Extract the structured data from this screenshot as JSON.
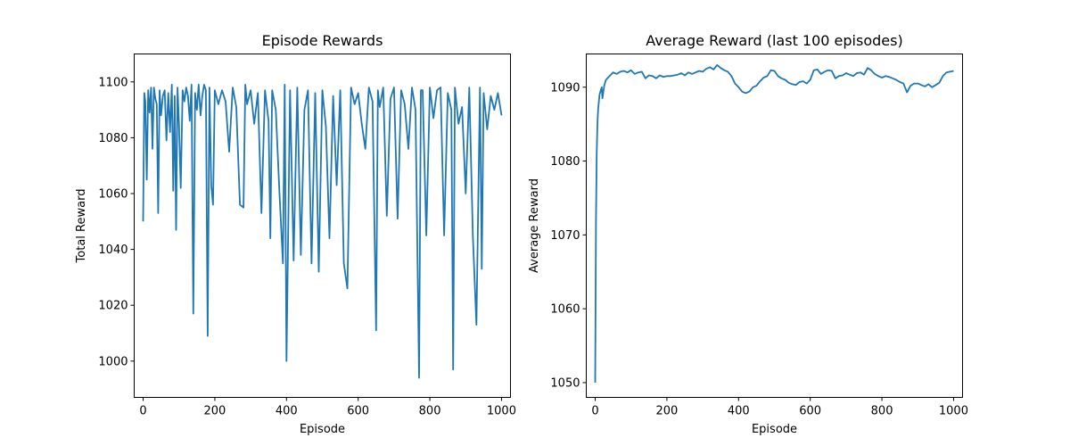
{
  "chart_data": [
    {
      "type": "line",
      "title": "Episode Rewards",
      "xlabel": "Episode",
      "ylabel": "Total Reward",
      "xlim": [
        -25,
        1025
      ],
      "ylim": [
        987,
        1110
      ],
      "xticks": [
        0,
        200,
        400,
        600,
        800,
        1000
      ],
      "yticks": [
        1000,
        1020,
        1040,
        1060,
        1080,
        1100
      ],
      "grid": false,
      "color": "#1f77b4",
      "series": [
        {
          "x": [
            0,
            3,
            6,
            10,
            14,
            18,
            22,
            26,
            30,
            34,
            38,
            42,
            46,
            50,
            55,
            60,
            65,
            70,
            75,
            80,
            84,
            88,
            92,
            96,
            100,
            105,
            110,
            115,
            120,
            125,
            130,
            135,
            140,
            145,
            150,
            155,
            160,
            165,
            170,
            175,
            180,
            185,
            190,
            195,
            200,
            210,
            220,
            230,
            240,
            250,
            260,
            270,
            280,
            285,
            290,
            300,
            310,
            320,
            330,
            340,
            350,
            355,
            360,
            370,
            380,
            390,
            395,
            400,
            410,
            420,
            430,
            440,
            450,
            460,
            470,
            480,
            490,
            500,
            510,
            520,
            530,
            540,
            550,
            560,
            570,
            580,
            590,
            600,
            610,
            620,
            630,
            640,
            650,
            655,
            660,
            670,
            680,
            690,
            700,
            710,
            720,
            730,
            740,
            750,
            760,
            770,
            775,
            780,
            790,
            800,
            810,
            820,
            830,
            840,
            850,
            860,
            865,
            870,
            880,
            890,
            900,
            910,
            920,
            930,
            940,
            945,
            950,
            960,
            970,
            980,
            990,
            1000
          ],
          "values": [
            1050,
            1096,
            1093,
            1065,
            1097,
            1089,
            1098,
            1076,
            1098,
            1094,
            1092,
            1053,
            1097,
            1088,
            1095,
            1097,
            1079,
            1096,
            1082,
            1099,
            1061,
            1095,
            1047,
            1098,
            1085,
            1062,
            1097,
            1093,
            1098,
            1095,
            1086,
            1099,
            1017,
            1096,
            1090,
            1099,
            1088,
            1095,
            1099,
            1097,
            1009,
            1098,
            1063,
            1056,
            1097,
            1092,
            1097,
            1093,
            1075,
            1098,
            1091,
            1056,
            1055,
            1099,
            1092,
            1097,
            1085,
            1096,
            1053,
            1097,
            1086,
            1044,
            1097,
            1090,
            1061,
            1035,
            1099,
            1000,
            1097,
            1036,
            1098,
            1038,
            1090,
            1097,
            1035,
            1096,
            1032,
            1097,
            1084,
            1044,
            1095,
            1063,
            1097,
            1035,
            1026,
            1098,
            1092,
            1096,
            1085,
            1076,
            1098,
            1093,
            1011,
            1097,
            1091,
            1098,
            1052,
            1094,
            1098,
            1051,
            1097,
            1092,
            1076,
            1098,
            1090,
            994,
            1097,
            1097,
            1045,
            1098,
            1087,
            1097,
            1098,
            1045,
            1096,
            1090,
            997,
            1098,
            1085,
            1091,
            1060,
            1098,
            1045,
            1013,
            1098,
            1033,
            1096,
            1083,
            1095,
            1090,
            1096,
            1088
          ]
        }
      ]
    },
    {
      "type": "line",
      "title": "Average Reward (last 100 episodes)",
      "xlabel": "Episode",
      "ylabel": "Average Reward",
      "xlim": [
        -25,
        1025
      ],
      "ylim": [
        1048,
        1094.5
      ],
      "xticks": [
        0,
        200,
        400,
        600,
        800,
        1000
      ],
      "yticks": [
        1050,
        1060,
        1070,
        1080,
        1090
      ],
      "grid": false,
      "color": "#1f77b4",
      "series": [
        {
          "x": [
            0,
            2,
            4,
            6,
            8,
            10,
            12,
            15,
            18,
            20,
            25,
            30,
            40,
            50,
            60,
            70,
            80,
            90,
            100,
            110,
            120,
            130,
            140,
            150,
            160,
            170,
            180,
            190,
            200,
            210,
            220,
            230,
            240,
            250,
            260,
            270,
            280,
            290,
            300,
            310,
            320,
            330,
            340,
            350,
            360,
            370,
            380,
            390,
            400,
            410,
            420,
            430,
            440,
            450,
            460,
            470,
            480,
            490,
            500,
            510,
            520,
            530,
            540,
            550,
            560,
            570,
            580,
            590,
            600,
            610,
            620,
            630,
            640,
            650,
            660,
            670,
            680,
            690,
            700,
            710,
            720,
            730,
            740,
            750,
            760,
            770,
            780,
            790,
            800,
            810,
            820,
            830,
            840,
            850,
            860,
            870,
            880,
            890,
            900,
            910,
            920,
            930,
            940,
            950,
            960,
            970,
            980,
            990,
            1000
          ],
          "values": [
            1050,
            1072,
            1081,
            1085,
            1087,
            1088,
            1089,
            1089.5,
            1090,
            1088.5,
            1090.2,
            1091,
            1091.5,
            1092,
            1091.8,
            1092.1,
            1092.2,
            1092,
            1092.3,
            1091.8,
            1092,
            1092.1,
            1091.2,
            1091.6,
            1091.5,
            1091.2,
            1091.6,
            1091.4,
            1091.5,
            1091.5,
            1091.6,
            1091.7,
            1091.9,
            1091.6,
            1092,
            1091.8,
            1092,
            1092.2,
            1092.1,
            1092.5,
            1092.7,
            1092.4,
            1093,
            1092.6,
            1092.3,
            1092.1,
            1091.5,
            1090.5,
            1090,
            1089.4,
            1089.2,
            1089.4,
            1090,
            1090.2,
            1090.8,
            1091.3,
            1091.5,
            1092.3,
            1092.2,
            1091.5,
            1091.2,
            1091,
            1090.6,
            1090.4,
            1090.3,
            1090.7,
            1090.8,
            1090.5,
            1091,
            1092.3,
            1092.4,
            1091.8,
            1092.1,
            1092.3,
            1092.2,
            1091.2,
            1091.5,
            1091.6,
            1091.9,
            1091.7,
            1091.5,
            1091.9,
            1092,
            1091.7,
            1092.6,
            1092.3,
            1091.8,
            1091.5,
            1091.3,
            1091.5,
            1091.4,
            1091.2,
            1091,
            1090.7,
            1090.5,
            1089.3,
            1090.2,
            1090.5,
            1090.5,
            1090.3,
            1090.1,
            1090.4,
            1090,
            1090.3,
            1090.6,
            1091.5,
            1092,
            1092.1,
            1092.2
          ]
        }
      ]
    }
  ]
}
